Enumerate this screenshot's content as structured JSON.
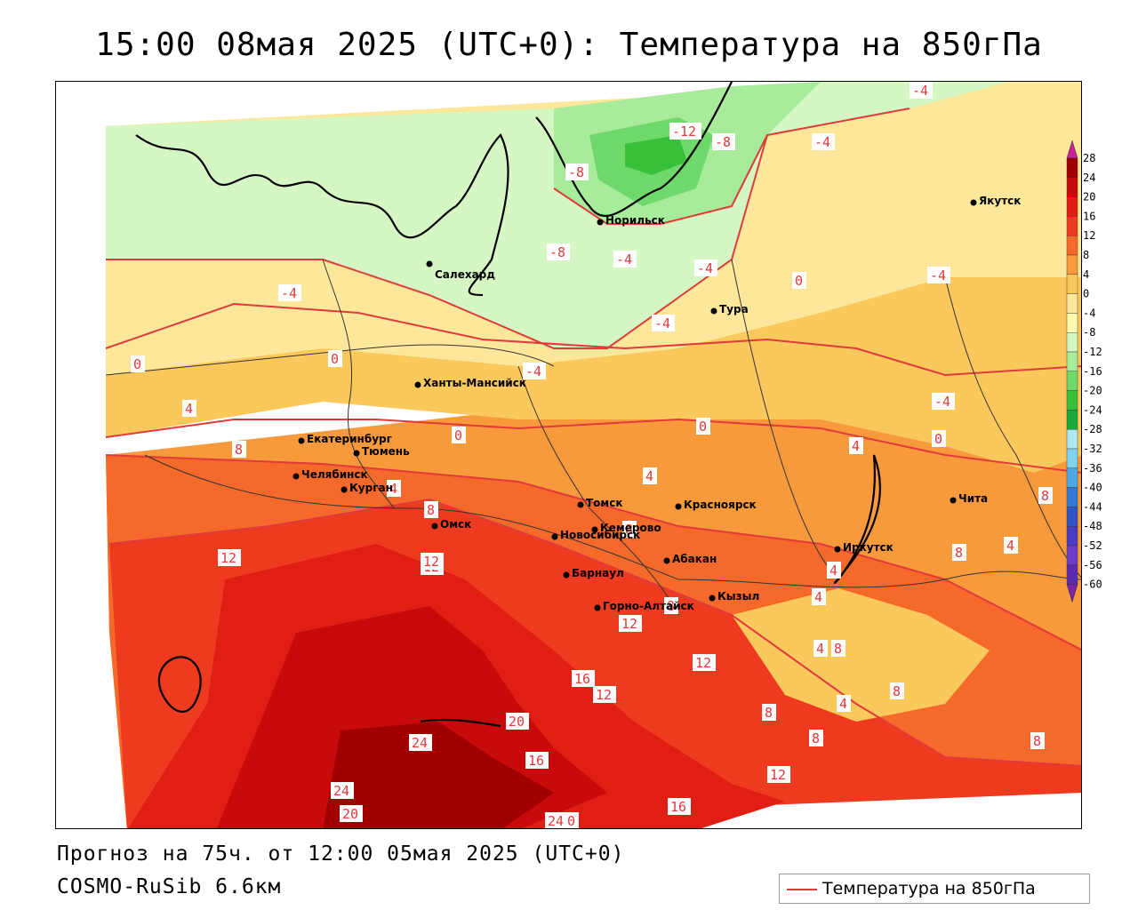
{
  "title": "15:00 08мая 2025 (UTC+0): Температура на 850гПа",
  "forecast_line": "Прогноз на 75ч. от 12:00 05мая 2025 (UTC+0)",
  "model_line": "COSMO-RuSib 6.6км",
  "legend": {
    "label": "Температура на 850гПа",
    "line_color": "#e03a3a"
  },
  "colorbar": {
    "ticks": [
      "28",
      "24",
      "20",
      "16",
      "12",
      "8",
      "4",
      "0",
      "-4",
      "-8",
      "-12",
      "-16",
      "-20",
      "-24",
      "-28",
      "-32",
      "-36",
      "-40",
      "-44",
      "-48",
      "-52",
      "-56",
      "-60"
    ],
    "colors": [
      "#a00000",
      "#c80a0a",
      "#e01e14",
      "#ee3a1e",
      "#f56a2a",
      "#f89a3c",
      "#fbc85c",
      "#fde79a",
      "#fffab0",
      "#d4f7c4",
      "#a8eb9a",
      "#6ed86a",
      "#38c03a",
      "#1aa83a",
      "#aee8f2",
      "#80d2ee",
      "#4ea8e6",
      "#3478d6",
      "#3054c4",
      "#4a3cc0",
      "#6a3cc8",
      "#5a2aae",
      "#40209a",
      "#cc2299",
      "#7a22aa"
    ]
  },
  "cities": [
    {
      "name": "Якутск"
    },
    {
      "name": "Норильск"
    },
    {
      "name": "Салехард"
    },
    {
      "name": "Тура"
    },
    {
      "name": "Ханты-Мансийск"
    },
    {
      "name": "Екатеринбург"
    },
    {
      "name": "Тюмень"
    },
    {
      "name": "Челябинск"
    },
    {
      "name": "Курган"
    },
    {
      "name": "Омск"
    },
    {
      "name": "Новосибирск"
    },
    {
      "name": "Томск"
    },
    {
      "name": "Кемерово"
    },
    {
      "name": "Красноярск"
    },
    {
      "name": "Барнаул"
    },
    {
      "name": "Абакан"
    },
    {
      "name": "Иркутск"
    },
    {
      "name": "Чита"
    },
    {
      "name": "Горно-Алтайск"
    },
    {
      "name": "Кызыл"
    }
  ],
  "isotherm_labels": [
    {
      "text": "-4"
    },
    {
      "text": "-12"
    },
    {
      "text": "-8"
    },
    {
      "text": "-4"
    },
    {
      "text": "-8"
    },
    {
      "text": "-8"
    },
    {
      "text": "-4"
    },
    {
      "text": "-4"
    },
    {
      "text": "-4"
    },
    {
      "text": "0"
    },
    {
      "text": "-4"
    },
    {
      "text": "-4"
    },
    {
      "text": "-4"
    },
    {
      "text": "0"
    },
    {
      "text": "0"
    },
    {
      "text": "-4"
    },
    {
      "text": "4"
    },
    {
      "text": "0"
    },
    {
      "text": "0"
    },
    {
      "text": "0"
    },
    {
      "text": "8"
    },
    {
      "text": "4"
    },
    {
      "text": "4"
    },
    {
      "text": "8"
    },
    {
      "text": "4"
    },
    {
      "text": "8"
    },
    {
      "text": "12"
    },
    {
      "text": "12"
    },
    {
      "text": "8"
    },
    {
      "text": "4"
    },
    {
      "text": "8"
    },
    {
      "text": "4"
    },
    {
      "text": "4"
    },
    {
      "text": "12"
    },
    {
      "text": "12"
    },
    {
      "text": "8"
    },
    {
      "text": "12"
    },
    {
      "text": "16"
    },
    {
      "text": "12"
    },
    {
      "text": "4"
    },
    {
      "text": "8"
    },
    {
      "text": "4"
    },
    {
      "text": "8"
    },
    {
      "text": "8"
    },
    {
      "text": "8"
    },
    {
      "text": "20"
    },
    {
      "text": "24"
    },
    {
      "text": "16"
    },
    {
      "text": "12"
    },
    {
      "text": "8"
    },
    {
      "text": "24"
    },
    {
      "text": "20"
    },
    {
      "text": "24"
    },
    {
      "text": "0"
    },
    {
      "text": "16"
    }
  ]
}
